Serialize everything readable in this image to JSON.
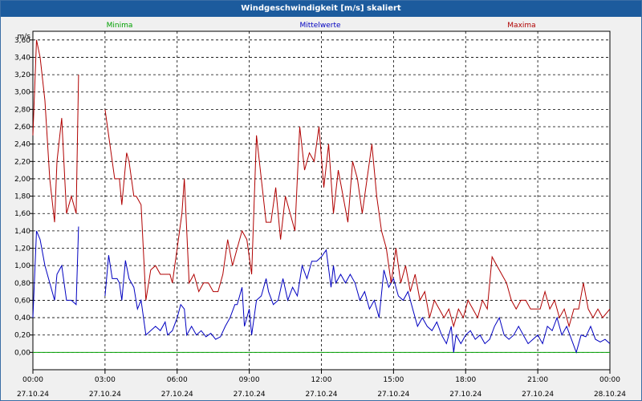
{
  "window": {
    "title": "Windgeschwindigkeit [m/s] skaliert"
  },
  "chart_data": {
    "type": "line",
    "title": "Windgeschwindigkeit [m/s] skaliert",
    "ylabel": "m/s",
    "ylim": [
      -0.2,
      3.7
    ],
    "yticks": [
      "0,00",
      "0,20",
      "0,40",
      "0,60",
      "0,80",
      "1,00",
      "1,20",
      "1,40",
      "1,60",
      "1,80",
      "2,00",
      "2,20",
      "2,40",
      "2,60",
      "2,80",
      "3,00",
      "3,20",
      "3,40",
      "3,60"
    ],
    "xlim": [
      0,
      24
    ],
    "xticks": [
      {
        "time": "00:00",
        "date": "27.10.24"
      },
      {
        "time": "03:00",
        "date": "27.10.24"
      },
      {
        "time": "06:00",
        "date": "27.10.24"
      },
      {
        "time": "09:00",
        "date": "27.10.24"
      },
      {
        "time": "12:00",
        "date": "27.10.24"
      },
      {
        "time": "15:00",
        "date": "27.10.24"
      },
      {
        "time": "18:00",
        "date": "27.10.24"
      },
      {
        "time": "21:00",
        "date": "27.10.24"
      },
      {
        "time": "00:00",
        "date": "28.10.24"
      }
    ],
    "grid": true,
    "legend_position": "top",
    "series": [
      {
        "name": "Minima",
        "color": "#00a000",
        "segments": [
          [
            [
              0,
              0.0
            ],
            [
              24,
              0.0
            ]
          ]
        ]
      },
      {
        "name": "Mittelwerte",
        "color": "#0000c0",
        "segments": [
          [
            [
              0,
              0.4
            ],
            [
              0.15,
              1.4
            ],
            [
              0.3,
              1.3
            ],
            [
              0.5,
              1.0
            ],
            [
              0.7,
              0.8
            ],
            [
              0.9,
              0.6
            ],
            [
              1.0,
              0.9
            ],
            [
              1.2,
              1.0
            ],
            [
              1.4,
              0.6
            ],
            [
              1.6,
              0.6
            ],
            [
              1.8,
              0.55
            ],
            [
              1.9,
              1.45
            ]
          ],
          [
            [
              3.0,
              0.65
            ],
            [
              3.15,
              1.12
            ],
            [
              3.3,
              0.85
            ],
            [
              3.5,
              0.85
            ],
            [
              3.6,
              0.8
            ],
            [
              3.7,
              0.6
            ],
            [
              3.85,
              1.06
            ],
            [
              4.0,
              0.85
            ],
            [
              4.2,
              0.75
            ],
            [
              4.35,
              0.5
            ],
            [
              4.5,
              0.6
            ],
            [
              4.7,
              0.2
            ],
            [
              4.9,
              0.25
            ],
            [
              5.1,
              0.3
            ],
            [
              5.3,
              0.25
            ],
            [
              5.5,
              0.35
            ],
            [
              5.6,
              0.2
            ],
            [
              5.8,
              0.25
            ],
            [
              6.0,
              0.4
            ],
            [
              6.15,
              0.55
            ],
            [
              6.3,
              0.5
            ],
            [
              6.4,
              0.2
            ],
            [
              6.6,
              0.3
            ],
            [
              6.8,
              0.2
            ],
            [
              7.0,
              0.25
            ],
            [
              7.2,
              0.18
            ],
            [
              7.4,
              0.22
            ],
            [
              7.6,
              0.15
            ],
            [
              7.8,
              0.18
            ],
            [
              8.0,
              0.3
            ],
            [
              8.2,
              0.4
            ],
            [
              8.4,
              0.55
            ],
            [
              8.5,
              0.55
            ],
            [
              8.7,
              0.75
            ],
            [
              8.8,
              0.3
            ],
            [
              9.0,
              0.5
            ],
            [
              9.1,
              0.2
            ],
            [
              9.3,
              0.6
            ],
            [
              9.5,
              0.65
            ],
            [
              9.7,
              0.85
            ],
            [
              9.8,
              0.7
            ],
            [
              10.0,
              0.55
            ],
            [
              10.2,
              0.6
            ],
            [
              10.4,
              0.85
            ],
            [
              10.6,
              0.6
            ],
            [
              10.8,
              0.75
            ],
            [
              11.0,
              0.65
            ],
            [
              11.2,
              1.0
            ],
            [
              11.4,
              0.85
            ],
            [
              11.6,
              1.05
            ],
            [
              11.8,
              1.05
            ],
            [
              12.0,
              1.1
            ],
            [
              12.2,
              1.18
            ],
            [
              12.4,
              0.75
            ],
            [
              12.5,
              1.0
            ],
            [
              12.6,
              0.8
            ],
            [
              12.8,
              0.9
            ],
            [
              13.0,
              0.8
            ],
            [
              13.2,
              0.9
            ],
            [
              13.4,
              0.8
            ],
            [
              13.6,
              0.6
            ],
            [
              13.8,
              0.7
            ],
            [
              14.0,
              0.5
            ],
            [
              14.2,
              0.6
            ],
            [
              14.4,
              0.4
            ],
            [
              14.6,
              0.95
            ],
            [
              14.8,
              0.75
            ],
            [
              15.0,
              0.85
            ],
            [
              15.2,
              0.65
            ],
            [
              15.4,
              0.6
            ],
            [
              15.6,
              0.7
            ],
            [
              15.8,
              0.5
            ],
            [
              16.0,
              0.3
            ],
            [
              16.2,
              0.4
            ],
            [
              16.4,
              0.3
            ],
            [
              16.6,
              0.25
            ],
            [
              16.8,
              0.35
            ],
            [
              17.0,
              0.2
            ],
            [
              17.2,
              0.1
            ],
            [
              17.4,
              0.3
            ],
            [
              17.5,
              0.0
            ],
            [
              17.6,
              0.2
            ],
            [
              17.8,
              0.1
            ],
            [
              18.0,
              0.2
            ],
            [
              18.2,
              0.25
            ],
            [
              18.4,
              0.15
            ],
            [
              18.6,
              0.2
            ],
            [
              18.8,
              0.1
            ],
            [
              19.0,
              0.15
            ],
            [
              19.2,
              0.3
            ],
            [
              19.4,
              0.4
            ],
            [
              19.6,
              0.2
            ],
            [
              19.8,
              0.15
            ],
            [
              20.0,
              0.2
            ],
            [
              20.2,
              0.3
            ],
            [
              20.4,
              0.2
            ],
            [
              20.6,
              0.1
            ],
            [
              20.8,
              0.15
            ],
            [
              21.0,
              0.2
            ],
            [
              21.2,
              0.1
            ],
            [
              21.4,
              0.3
            ],
            [
              21.6,
              0.25
            ],
            [
              21.8,
              0.4
            ],
            [
              22.0,
              0.2
            ],
            [
              22.2,
              0.3
            ],
            [
              22.4,
              0.15
            ],
            [
              22.6,
              0.0
            ],
            [
              22.8,
              0.2
            ],
            [
              23.0,
              0.18
            ],
            [
              23.2,
              0.3
            ],
            [
              23.4,
              0.15
            ],
            [
              23.6,
              0.12
            ],
            [
              23.8,
              0.15
            ],
            [
              24.0,
              0.1
            ]
          ]
        ]
      },
      {
        "name": "Maxima",
        "color": "#b00000",
        "segments": [
          [
            [
              0,
              2.5
            ],
            [
              0.15,
              3.6
            ],
            [
              0.3,
              3.4
            ],
            [
              0.5,
              2.9
            ],
            [
              0.7,
              2.0
            ],
            [
              0.9,
              1.5
            ],
            [
              1.0,
              2.2
            ],
            [
              1.2,
              2.7
            ],
            [
              1.4,
              1.6
            ],
            [
              1.6,
              1.8
            ],
            [
              1.8,
              1.6
            ],
            [
              1.9,
              3.2
            ]
          ],
          [
            [
              3.0,
              2.8
            ],
            [
              3.2,
              2.4
            ],
            [
              3.4,
              2.0
            ],
            [
              3.6,
              2.0
            ],
            [
              3.7,
              1.7
            ],
            [
              3.9,
              2.3
            ],
            [
              4.0,
              2.2
            ],
            [
              4.2,
              1.8
            ],
            [
              4.3,
              1.8
            ],
            [
              4.5,
              1.7
            ],
            [
              4.7,
              0.6
            ],
            [
              4.9,
              0.95
            ],
            [
              5.1,
              1.0
            ],
            [
              5.3,
              0.9
            ],
            [
              5.5,
              0.9
            ],
            [
              5.7,
              0.9
            ],
            [
              5.8,
              0.8
            ],
            [
              6.0,
              1.2
            ],
            [
              6.2,
              1.6
            ],
            [
              6.3,
              2.0
            ],
            [
              6.5,
              0.8
            ],
            [
              6.7,
              0.9
            ],
            [
              6.9,
              0.7
            ],
            [
              7.1,
              0.8
            ],
            [
              7.3,
              0.8
            ],
            [
              7.5,
              0.7
            ],
            [
              7.7,
              0.7
            ],
            [
              7.9,
              0.9
            ],
            [
              8.1,
              1.3
            ],
            [
              8.3,
              1.0
            ],
            [
              8.5,
              1.2
            ],
            [
              8.7,
              1.4
            ],
            [
              8.9,
              1.3
            ],
            [
              9.1,
              0.9
            ],
            [
              9.3,
              2.5
            ],
            [
              9.5,
              2.0
            ],
            [
              9.7,
              1.5
            ],
            [
              9.9,
              1.5
            ],
            [
              10.1,
              1.9
            ],
            [
              10.3,
              1.3
            ],
            [
              10.5,
              1.8
            ],
            [
              10.7,
              1.6
            ],
            [
              10.9,
              1.4
            ],
            [
              11.1,
              2.6
            ],
            [
              11.3,
              2.1
            ],
            [
              11.5,
              2.3
            ],
            [
              11.7,
              2.2
            ],
            [
              11.9,
              2.6
            ],
            [
              12.1,
              1.9
            ],
            [
              12.3,
              2.4
            ],
            [
              12.5,
              1.6
            ],
            [
              12.7,
              2.1
            ],
            [
              12.9,
              1.8
            ],
            [
              13.1,
              1.5
            ],
            [
              13.3,
              2.2
            ],
            [
              13.5,
              2.0
            ],
            [
              13.7,
              1.6
            ],
            [
              13.9,
              2.0
            ],
            [
              14.1,
              2.4
            ],
            [
              14.3,
              1.8
            ],
            [
              14.5,
              1.4
            ],
            [
              14.7,
              1.2
            ],
            [
              14.9,
              0.8
            ],
            [
              15.1,
              1.2
            ],
            [
              15.3,
              0.8
            ],
            [
              15.5,
              1.0
            ],
            [
              15.7,
              0.7
            ],
            [
              15.9,
              0.9
            ],
            [
              16.1,
              0.6
            ],
            [
              16.3,
              0.7
            ],
            [
              16.5,
              0.4
            ],
            [
              16.7,
              0.6
            ],
            [
              16.9,
              0.5
            ],
            [
              17.1,
              0.4
            ],
            [
              17.3,
              0.5
            ],
            [
              17.5,
              0.3
            ],
            [
              17.7,
              0.5
            ],
            [
              17.9,
              0.4
            ],
            [
              18.1,
              0.6
            ],
            [
              18.3,
              0.5
            ],
            [
              18.5,
              0.4
            ],
            [
              18.7,
              0.6
            ],
            [
              18.9,
              0.5
            ],
            [
              19.1,
              1.1
            ],
            [
              19.3,
              1.0
            ],
            [
              19.5,
              0.9
            ],
            [
              19.7,
              0.8
            ],
            [
              19.9,
              0.6
            ],
            [
              20.1,
              0.5
            ],
            [
              20.3,
              0.6
            ],
            [
              20.5,
              0.6
            ],
            [
              20.7,
              0.5
            ],
            [
              20.9,
              0.5
            ],
            [
              21.1,
              0.5
            ],
            [
              21.3,
              0.7
            ],
            [
              21.5,
              0.5
            ],
            [
              21.7,
              0.6
            ],
            [
              21.9,
              0.4
            ],
            [
              22.1,
              0.5
            ],
            [
              22.3,
              0.3
            ],
            [
              22.5,
              0.5
            ],
            [
              22.7,
              0.5
            ],
            [
              22.9,
              0.8
            ],
            [
              23.1,
              0.5
            ],
            [
              23.3,
              0.4
            ],
            [
              23.5,
              0.5
            ],
            [
              23.7,
              0.4
            ],
            [
              24.0,
              0.5
            ]
          ]
        ]
      }
    ]
  }
}
